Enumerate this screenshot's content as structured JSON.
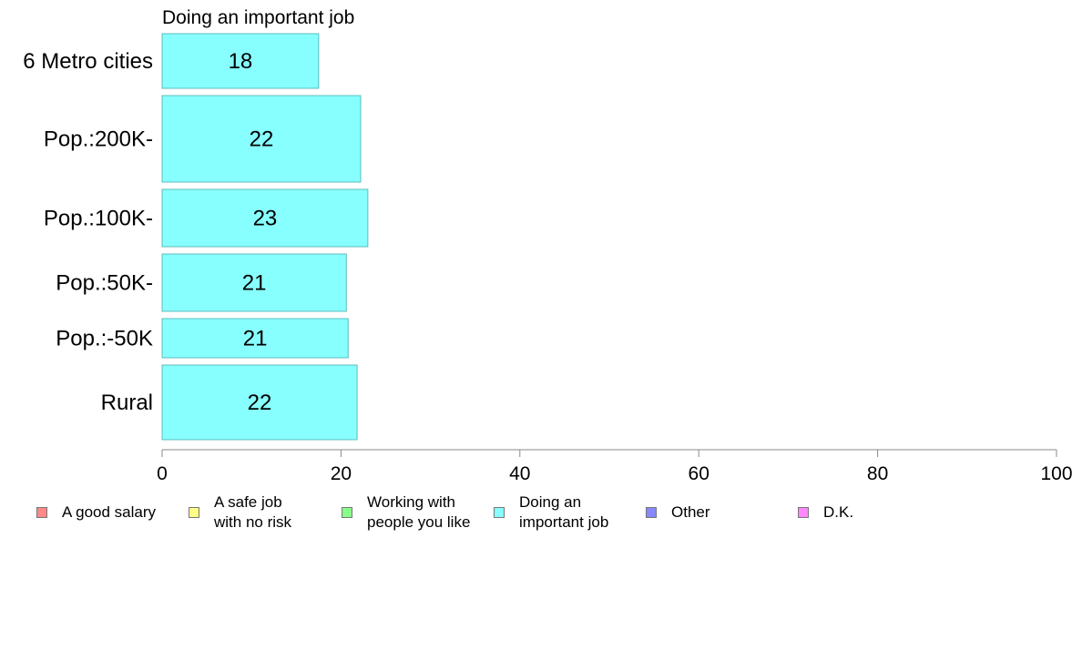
{
  "chart_data": {
    "type": "bar",
    "orientation": "horizontal",
    "title": "Doing an important job",
    "categories": [
      "6 Metro cities",
      "Pop.:200K-",
      "Pop.:100K-",
      "Pop.:50K-",
      "Pop.:-50K",
      "Rural"
    ],
    "values": [
      18,
      22,
      23,
      21,
      21,
      22
    ],
    "bar_values_exact": [
      17.5,
      22.2,
      23.0,
      20.6,
      20.8,
      21.8
    ],
    "data_labels": [
      "18",
      "22",
      "23",
      "21",
      "21",
      "22"
    ],
    "xlim": [
      0,
      100
    ],
    "xticks": [
      "0",
      "20",
      "40",
      "60",
      "80",
      "100"
    ],
    "bar_color": "#88ffff",
    "bar_border_color": "#5cbcbc",
    "grid": false,
    "legend_position": "bottom",
    "legend": [
      {
        "label": "A good salary",
        "color": "#ff8888"
      },
      {
        "label": "A safe job\nwith no risk",
        "color": "#ffff88"
      },
      {
        "label": "Working with\npeople you like",
        "color": "#88ff88"
      },
      {
        "label": "Doing an\nimportant job",
        "color": "#88ffff"
      },
      {
        "label": "Other",
        "color": "#8888ff"
      },
      {
        "label": "D.K.",
        "color": "#ff88ff"
      }
    ]
  }
}
